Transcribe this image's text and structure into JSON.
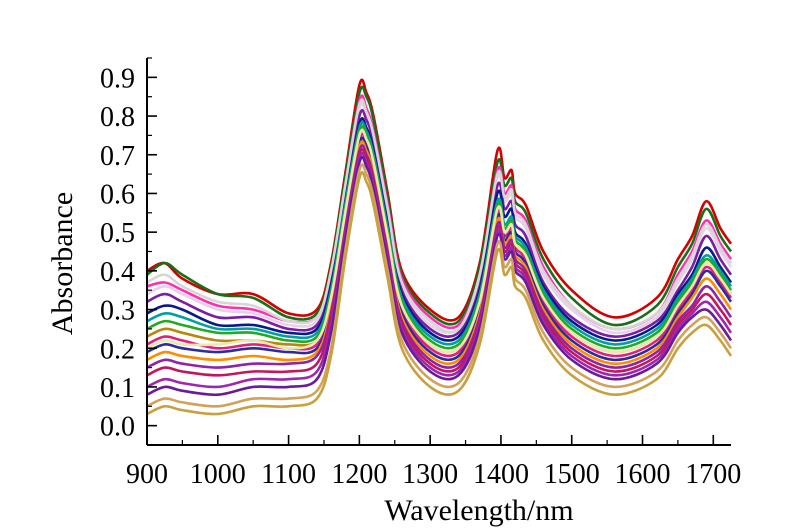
{
  "chart_data": {
    "type": "line",
    "title": "",
    "xlabel": "Wavelength/nm",
    "ylabel": "Absorbance",
    "xlim": [
      900,
      1725
    ],
    "ylim": [
      -0.05,
      0.95
    ],
    "grid": false,
    "legend": "none",
    "x_ticks": [
      900,
      1000,
      1100,
      1200,
      1300,
      1400,
      1500,
      1600,
      1700
    ],
    "x_tick_labels": [
      "900",
      "1000",
      "1100",
      "1200",
      "1300",
      "1400",
      "1500",
      "1600",
      "1700"
    ],
    "y_ticks": [
      0.0,
      0.1,
      0.2,
      0.3,
      0.4,
      0.5,
      0.6,
      0.7,
      0.8,
      0.9
    ],
    "y_tick_labels": [
      "0.0",
      "0.1",
      "0.2",
      "0.3",
      "0.4",
      "0.5",
      "0.6",
      "0.7",
      "0.8",
      "0.9"
    ],
    "x": [
      900,
      925,
      950,
      1000,
      1050,
      1100,
      1140,
      1160,
      1180,
      1200,
      1210,
      1220,
      1240,
      1260,
      1300,
      1340,
      1370,
      1395,
      1405,
      1415,
      1420,
      1435,
      1460,
      1500,
      1560,
      1620,
      1650,
      1670,
      1690,
      1710,
      1725
    ],
    "series": [
      {
        "color": "#d40000",
        "values": [
          0.4,
          0.42,
          0.38,
          0.34,
          0.34,
          0.29,
          0.3,
          0.42,
          0.65,
          0.88,
          0.86,
          0.8,
          0.6,
          0.4,
          0.3,
          0.28,
          0.42,
          0.71,
          0.64,
          0.66,
          0.6,
          0.57,
          0.45,
          0.35,
          0.28,
          0.33,
          0.43,
          0.49,
          0.58,
          0.51,
          0.47
        ]
      },
      {
        "color": "#1a6e1a",
        "values": [
          0.39,
          0.42,
          0.39,
          0.34,
          0.33,
          0.28,
          0.29,
          0.41,
          0.64,
          0.86,
          0.85,
          0.79,
          0.59,
          0.39,
          0.29,
          0.27,
          0.41,
          0.68,
          0.62,
          0.64,
          0.58,
          0.55,
          0.43,
          0.33,
          0.26,
          0.31,
          0.41,
          0.47,
          0.56,
          0.49,
          0.45
        ]
      },
      {
        "color": "#ff2fb0",
        "values": [
          0.36,
          0.37,
          0.35,
          0.31,
          0.3,
          0.27,
          0.28,
          0.39,
          0.62,
          0.84,
          0.82,
          0.76,
          0.57,
          0.38,
          0.28,
          0.26,
          0.39,
          0.66,
          0.6,
          0.62,
          0.56,
          0.53,
          0.41,
          0.31,
          0.25,
          0.29,
          0.39,
          0.45,
          0.53,
          0.47,
          0.43
        ]
      },
      {
        "color": "#e8d0e8",
        "values": [
          0.34,
          0.36,
          0.34,
          0.3,
          0.29,
          0.26,
          0.27,
          0.38,
          0.6,
          0.82,
          0.8,
          0.74,
          0.55,
          0.36,
          0.26,
          0.25,
          0.38,
          0.64,
          0.58,
          0.6,
          0.54,
          0.51,
          0.39,
          0.3,
          0.24,
          0.28,
          0.37,
          0.43,
          0.51,
          0.45,
          0.41
        ]
      },
      {
        "color": "#7b1fa2",
        "values": [
          0.32,
          0.34,
          0.32,
          0.28,
          0.28,
          0.25,
          0.26,
          0.37,
          0.59,
          0.8,
          0.79,
          0.73,
          0.54,
          0.35,
          0.25,
          0.24,
          0.36,
          0.62,
          0.56,
          0.58,
          0.52,
          0.49,
          0.37,
          0.28,
          0.23,
          0.27,
          0.35,
          0.41,
          0.49,
          0.43,
          0.39
        ]
      },
      {
        "color": "#0a1a8c",
        "values": [
          0.29,
          0.31,
          0.3,
          0.26,
          0.26,
          0.24,
          0.25,
          0.36,
          0.58,
          0.78,
          0.77,
          0.71,
          0.52,
          0.34,
          0.24,
          0.23,
          0.35,
          0.6,
          0.54,
          0.56,
          0.5,
          0.47,
          0.36,
          0.27,
          0.22,
          0.26,
          0.34,
          0.39,
          0.46,
          0.41,
          0.37
        ]
      },
      {
        "color": "#00a0a0",
        "values": [
          0.27,
          0.29,
          0.28,
          0.25,
          0.25,
          0.23,
          0.24,
          0.35,
          0.57,
          0.77,
          0.76,
          0.7,
          0.51,
          0.33,
          0.23,
          0.22,
          0.34,
          0.58,
          0.52,
          0.54,
          0.49,
          0.46,
          0.35,
          0.26,
          0.21,
          0.25,
          0.33,
          0.38,
          0.44,
          0.4,
          0.36
        ]
      },
      {
        "color": "#22aa22",
        "values": [
          0.25,
          0.27,
          0.26,
          0.24,
          0.24,
          0.22,
          0.23,
          0.34,
          0.56,
          0.76,
          0.75,
          0.69,
          0.5,
          0.32,
          0.22,
          0.21,
          0.33,
          0.57,
          0.51,
          0.53,
          0.48,
          0.45,
          0.34,
          0.25,
          0.2,
          0.24,
          0.32,
          0.37,
          0.43,
          0.39,
          0.35
        ]
      },
      {
        "color": "#b8860b",
        "values": [
          0.23,
          0.25,
          0.24,
          0.22,
          0.22,
          0.21,
          0.22,
          0.33,
          0.55,
          0.75,
          0.74,
          0.68,
          0.49,
          0.31,
          0.21,
          0.2,
          0.32,
          0.56,
          0.5,
          0.52,
          0.47,
          0.44,
          0.33,
          0.24,
          0.19,
          0.23,
          0.31,
          0.36,
          0.42,
          0.38,
          0.34
        ]
      },
      {
        "color": "#e0217a",
        "values": [
          0.21,
          0.23,
          0.22,
          0.2,
          0.21,
          0.2,
          0.21,
          0.32,
          0.54,
          0.74,
          0.73,
          0.67,
          0.48,
          0.3,
          0.2,
          0.19,
          0.31,
          0.55,
          0.49,
          0.51,
          0.46,
          0.43,
          0.32,
          0.23,
          0.18,
          0.22,
          0.3,
          0.35,
          0.41,
          0.37,
          0.33
        ]
      },
      {
        "color": "#2c2c9c",
        "values": [
          0.19,
          0.21,
          0.2,
          0.19,
          0.2,
          0.19,
          0.2,
          0.31,
          0.53,
          0.73,
          0.72,
          0.66,
          0.47,
          0.29,
          0.19,
          0.18,
          0.3,
          0.54,
          0.48,
          0.5,
          0.45,
          0.42,
          0.31,
          0.22,
          0.17,
          0.21,
          0.29,
          0.34,
          0.4,
          0.36,
          0.32
        ]
      },
      {
        "color": "#ff8c00",
        "values": [
          0.17,
          0.19,
          0.18,
          0.17,
          0.18,
          0.17,
          0.19,
          0.3,
          0.52,
          0.72,
          0.71,
          0.65,
          0.46,
          0.28,
          0.18,
          0.17,
          0.29,
          0.53,
          0.47,
          0.49,
          0.44,
          0.41,
          0.3,
          0.21,
          0.16,
          0.2,
          0.28,
          0.33,
          0.38,
          0.34,
          0.3
        ]
      },
      {
        "color": "#8e24aa",
        "values": [
          0.15,
          0.17,
          0.16,
          0.15,
          0.16,
          0.16,
          0.18,
          0.29,
          0.51,
          0.71,
          0.7,
          0.64,
          0.45,
          0.27,
          0.17,
          0.16,
          0.28,
          0.52,
          0.46,
          0.48,
          0.43,
          0.4,
          0.29,
          0.2,
          0.15,
          0.19,
          0.27,
          0.31,
          0.36,
          0.32,
          0.28
        ]
      },
      {
        "color": "#c2185b",
        "values": [
          0.13,
          0.15,
          0.14,
          0.13,
          0.14,
          0.14,
          0.16,
          0.28,
          0.5,
          0.7,
          0.69,
          0.63,
          0.44,
          0.26,
          0.16,
          0.15,
          0.27,
          0.51,
          0.45,
          0.47,
          0.42,
          0.39,
          0.28,
          0.19,
          0.14,
          0.18,
          0.26,
          0.3,
          0.34,
          0.3,
          0.26
        ]
      },
      {
        "color": "#9c27b0",
        "values": [
          0.1,
          0.12,
          0.11,
          0.1,
          0.12,
          0.12,
          0.14,
          0.26,
          0.49,
          0.69,
          0.68,
          0.62,
          0.43,
          0.25,
          0.15,
          0.14,
          0.26,
          0.5,
          0.44,
          0.46,
          0.41,
          0.38,
          0.27,
          0.18,
          0.13,
          0.17,
          0.25,
          0.29,
          0.32,
          0.28,
          0.24
        ]
      },
      {
        "color": "#6a1b9a",
        "values": [
          0.08,
          0.1,
          0.09,
          0.08,
          0.1,
          0.1,
          0.12,
          0.24,
          0.48,
          0.68,
          0.67,
          0.61,
          0.42,
          0.24,
          0.14,
          0.13,
          0.25,
          0.49,
          0.43,
          0.45,
          0.4,
          0.37,
          0.26,
          0.17,
          0.12,
          0.16,
          0.24,
          0.28,
          0.3,
          0.26,
          0.22
        ]
      },
      {
        "color": "#d4a15a",
        "values": [
          0.05,
          0.07,
          0.06,
          0.05,
          0.07,
          0.07,
          0.09,
          0.2,
          0.45,
          0.66,
          0.65,
          0.59,
          0.4,
          0.22,
          0.12,
          0.11,
          0.23,
          0.47,
          0.41,
          0.43,
          0.38,
          0.35,
          0.24,
          0.15,
          0.1,
          0.14,
          0.22,
          0.26,
          0.28,
          0.24,
          0.2
        ]
      },
      {
        "color": "#c8a040",
        "values": [
          0.03,
          0.05,
          0.04,
          0.03,
          0.05,
          0.05,
          0.07,
          0.18,
          0.43,
          0.64,
          0.63,
          0.57,
          0.38,
          0.2,
          0.1,
          0.09,
          0.21,
          0.45,
          0.39,
          0.41,
          0.36,
          0.33,
          0.22,
          0.13,
          0.08,
          0.12,
          0.2,
          0.24,
          0.26,
          0.22,
          0.18
        ]
      },
      {
        "color": "#e8e8b0",
        "values": [
          0.2,
          0.22,
          0.21,
          0.21,
          0.22,
          0.2,
          0.22,
          0.33,
          0.55,
          0.75,
          0.74,
          0.68,
          0.49,
          0.31,
          0.21,
          0.2,
          0.32,
          0.56,
          0.5,
          0.52,
          0.47,
          0.44,
          0.33,
          0.24,
          0.19,
          0.23,
          0.31,
          0.36,
          0.42,
          0.38,
          0.34
        ]
      },
      {
        "color": "#d6d6d6",
        "values": [
          0.37,
          0.39,
          0.36,
          0.32,
          0.31,
          0.27,
          0.28,
          0.4,
          0.62,
          0.83,
          0.81,
          0.75,
          0.56,
          0.37,
          0.27,
          0.25,
          0.39,
          0.65,
          0.59,
          0.61,
          0.55,
          0.52,
          0.4,
          0.31,
          0.25,
          0.29,
          0.38,
          0.44,
          0.52,
          0.46,
          0.42
        ]
      }
    ]
  }
}
